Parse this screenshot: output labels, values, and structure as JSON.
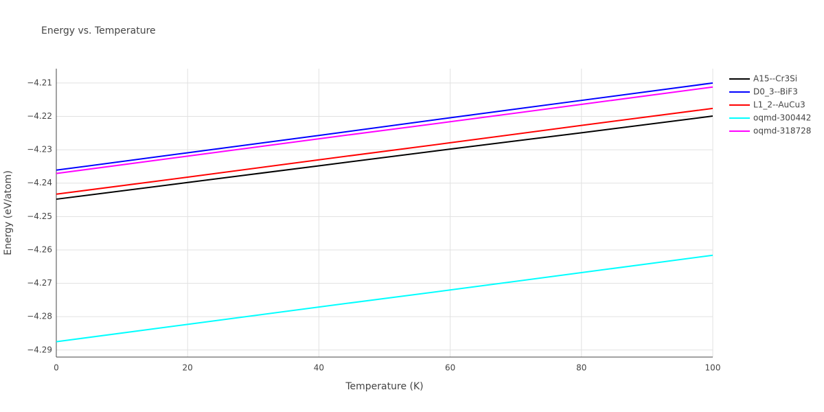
{
  "chart_data": {
    "type": "line",
    "title": "Energy vs. Temperature",
    "x_label": "Temperature (K)",
    "y_label": "Energy (eV/atom)",
    "x": [
      0,
      20,
      40,
      60,
      80,
      100
    ],
    "xlim": [
      0,
      100
    ],
    "xticks": [
      0,
      20,
      40,
      60,
      80,
      100
    ],
    "ylim": [
      -4.2921,
      -4.2057
    ],
    "yticks": [
      {
        "value": -4.29,
        "label": "−4.29"
      },
      {
        "value": -4.28,
        "label": "−4.28"
      },
      {
        "value": -4.27,
        "label": "−4.27"
      },
      {
        "value": -4.26,
        "label": "−4.26"
      },
      {
        "value": -4.25,
        "label": "−4.25"
      },
      {
        "value": -4.24,
        "label": "−4.24"
      },
      {
        "value": -4.23,
        "label": "−4.23"
      },
      {
        "value": -4.22,
        "label": "−4.22"
      },
      {
        "value": -4.21,
        "label": "−4.21"
      }
    ],
    "grid": true,
    "series": [
      {
        "name": "A15--Cr3Si",
        "color": "#000000",
        "values": [
          -4.2448,
          -4.2398,
          -4.2348,
          -4.2298,
          -4.2249,
          -4.2199
        ]
      },
      {
        "name": "D0_3--BiF3",
        "color": "#0000ff",
        "values": [
          -4.2361,
          -4.2309,
          -4.2257,
          -4.2204,
          -4.2152,
          -4.21
        ]
      },
      {
        "name": "L1_2--AuCu3",
        "color": "#ff0000",
        "values": [
          -4.2433,
          -4.2382,
          -4.233,
          -4.2279,
          -4.2227,
          -4.2176
        ]
      },
      {
        "name": "oqmd-300442",
        "color": "#00ffff",
        "values": [
          -4.2875,
          -4.2823,
          -4.2771,
          -4.272,
          -4.2668,
          -4.2616
        ]
      },
      {
        "name": "oqmd-318728",
        "color": "#ff00ff",
        "values": [
          -4.2371,
          -4.2319,
          -4.2267,
          -4.2216,
          -4.2164,
          -4.2112
        ]
      }
    ]
  }
}
